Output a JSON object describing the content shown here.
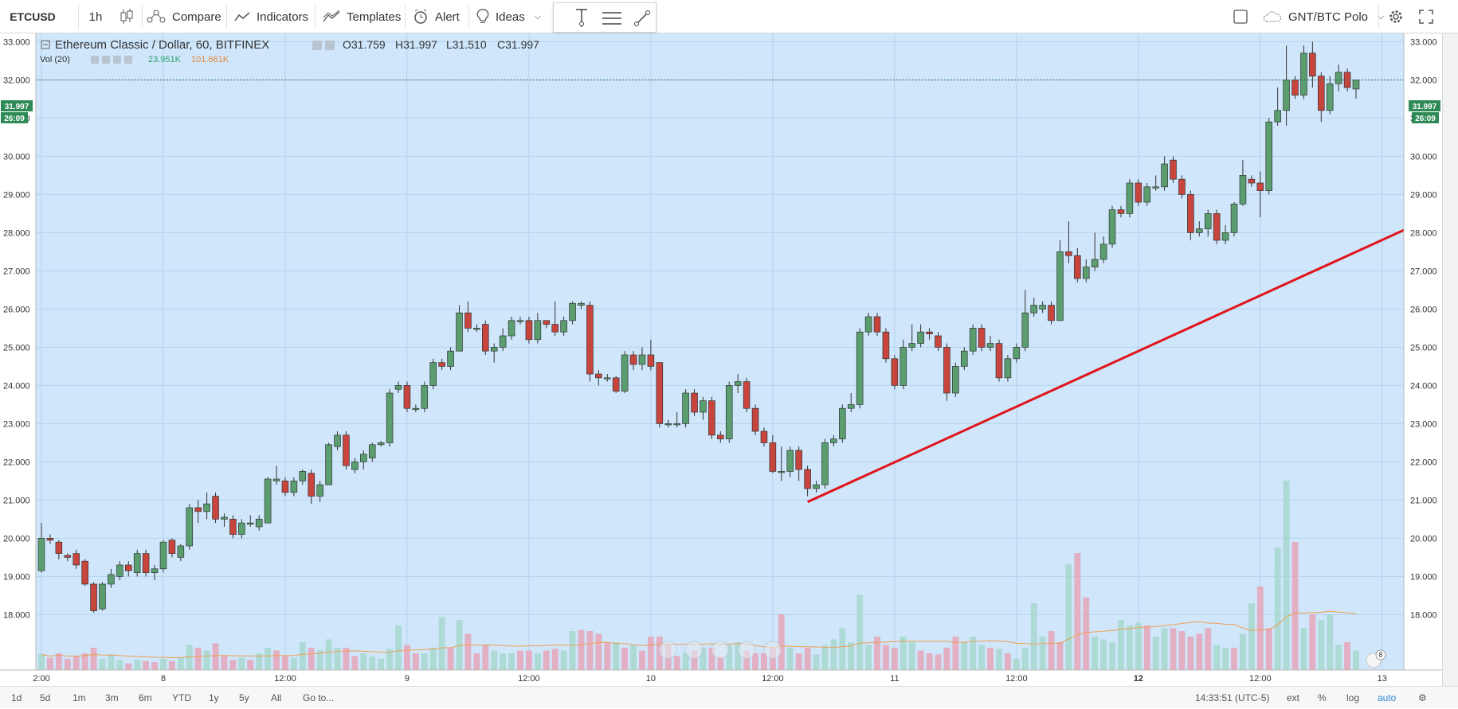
{
  "toolbar": {
    "symbol": "ETCUSD",
    "interval": "1h",
    "compare": "Compare",
    "indicators": "Indicators",
    "templates": "Templates",
    "alert": "Alert",
    "ideas": "Ideas",
    "pair": "GNT/BTC Polo"
  },
  "legend": {
    "title": "Ethereum Classic / Dollar, 60, BITFINEX",
    "open": "O31.759",
    "high": "H31.997",
    "low": "L31.510",
    "close": "C31.997",
    "vol_label": "Vol (20)",
    "vol_value": "23.951K",
    "vol_ma": "101.661K"
  },
  "price_badges": {
    "price": "31.997",
    "countdown": "26:09"
  },
  "bottombar": {
    "ranges": [
      "1d",
      "5d",
      "1m",
      "3m",
      "6m",
      "YTD",
      "1y",
      "5y",
      "All"
    ],
    "goto": "Go to...",
    "time": "14:33:51 (UTC-5)",
    "ext": "ext",
    "percent": "%",
    "log": "log",
    "auto": "auto"
  },
  "notification_count": "8",
  "colors": {
    "background": "#cfe6fb",
    "up": "#5a9e6f",
    "down": "#c8453e",
    "trendline": "#e0141b",
    "vol_up": "#a8d8d0",
    "vol_down": "#e4a8bd",
    "vol_ma": "#f0a050",
    "grid": "#b4d3ef"
  },
  "chart_data": {
    "type": "candlestick",
    "y_range": [
      17.3,
      33.8
    ],
    "y_ticks": [
      "33.000",
      "32.000",
      "31.000",
      "30.000",
      "29.000",
      "28.000",
      "27.000",
      "26.000",
      "25.000",
      "24.000",
      "23.000",
      "22.000",
      "21.000",
      "20.000",
      "19.000",
      "18.000"
    ],
    "x_labels": [
      {
        "label": "2:00",
        "index": 0
      },
      {
        "label": "8",
        "index": 14
      },
      {
        "label": "12:00",
        "index": 28
      },
      {
        "label": "9",
        "index": 42
      },
      {
        "label": "12:00",
        "index": 56
      },
      {
        "label": "10",
        "index": 70
      },
      {
        "label": "12:00",
        "index": 84
      },
      {
        "label": "11",
        "index": 98
      },
      {
        "label": "12:00",
        "index": 112
      },
      {
        "label": "12",
        "index": 126
      },
      {
        "label": "12:00",
        "index": 140
      },
      {
        "label": "13",
        "index": 154
      },
      {
        "label": "12:00",
        "index": 168
      }
    ],
    "candles": [
      [
        19.15,
        20.0,
        20.4,
        19.1
      ],
      [
        20.0,
        19.95,
        20.1,
        19.85
      ],
      [
        19.9,
        19.6,
        19.95,
        19.45
      ],
      [
        19.55,
        19.5,
        19.6,
        19.4
      ],
      [
        19.6,
        19.3,
        19.7,
        19.2
      ],
      [
        19.4,
        18.8,
        19.45,
        18.75
      ],
      [
        18.8,
        18.1,
        18.85,
        18.05
      ],
      [
        18.15,
        18.8,
        18.85,
        18.1
      ],
      [
        18.8,
        19.05,
        19.2,
        18.7
      ],
      [
        19.0,
        19.3,
        19.4,
        18.9
      ],
      [
        19.3,
        19.15,
        19.4,
        19.0
      ],
      [
        19.1,
        19.6,
        19.7,
        19.0
      ],
      [
        19.6,
        19.1,
        19.7,
        19.0
      ],
      [
        19.1,
        19.2,
        19.3,
        18.9
      ],
      [
        19.2,
        19.9,
        19.95,
        19.1
      ],
      [
        19.95,
        19.6,
        20.0,
        19.5
      ],
      [
        19.5,
        19.8,
        19.85,
        19.4
      ],
      [
        19.8,
        20.8,
        20.9,
        19.7
      ],
      [
        20.8,
        20.7,
        21.0,
        20.4
      ],
      [
        20.7,
        20.9,
        21.2,
        20.5
      ],
      [
        21.1,
        20.5,
        21.2,
        20.4
      ],
      [
        20.5,
        20.55,
        20.65,
        20.3
      ],
      [
        20.5,
        20.1,
        20.6,
        20.0
      ],
      [
        20.1,
        20.4,
        20.5,
        20.0
      ],
      [
        20.4,
        20.4,
        20.6,
        20.3
      ],
      [
        20.3,
        20.5,
        20.6,
        20.2
      ],
      [
        20.4,
        21.55,
        21.6,
        20.4
      ],
      [
        21.5,
        21.55,
        21.9,
        21.4
      ],
      [
        21.5,
        21.2,
        21.6,
        21.1
      ],
      [
        21.2,
        21.5,
        21.6,
        21.1
      ],
      [
        21.5,
        21.75,
        21.8,
        21.4
      ],
      [
        21.7,
        21.1,
        21.8,
        20.9
      ],
      [
        21.1,
        21.4,
        21.5,
        20.95
      ],
      [
        21.4,
        22.45,
        22.5,
        21.4
      ],
      [
        22.4,
        22.7,
        22.8,
        22.3
      ],
      [
        22.7,
        21.9,
        22.8,
        21.8
      ],
      [
        21.8,
        22.0,
        22.1,
        21.7
      ],
      [
        22.0,
        22.2,
        22.3,
        21.8
      ],
      [
        22.1,
        22.45,
        22.5,
        22.0
      ],
      [
        22.45,
        22.5,
        22.55,
        22.4
      ],
      [
        22.5,
        23.8,
        23.9,
        22.4
      ],
      [
        23.9,
        24.0,
        24.1,
        23.8
      ],
      [
        24.0,
        23.4,
        24.1,
        23.3
      ],
      [
        23.4,
        23.4,
        23.5,
        23.3
      ],
      [
        23.4,
        24.0,
        24.1,
        23.3
      ],
      [
        24.0,
        24.6,
        24.7,
        23.9
      ],
      [
        24.6,
        24.5,
        24.7,
        24.4
      ],
      [
        24.5,
        24.9,
        25.0,
        24.4
      ],
      [
        24.9,
        25.9,
        26.1,
        24.9
      ],
      [
        25.9,
        25.5,
        26.2,
        25.4
      ],
      [
        25.5,
        25.5,
        25.6,
        25.4
      ],
      [
        25.6,
        24.9,
        25.7,
        24.8
      ],
      [
        24.9,
        25.0,
        25.1,
        24.6
      ],
      [
        25.0,
        25.3,
        25.5,
        24.9
      ],
      [
        25.3,
        25.7,
        25.8,
        25.2
      ],
      [
        25.7,
        25.7,
        25.8,
        25.6
      ],
      [
        25.7,
        25.2,
        25.8,
        25.1
      ],
      [
        25.2,
        25.7,
        25.9,
        25.1
      ],
      [
        25.7,
        25.6,
        25.7,
        25.5
      ],
      [
        25.6,
        25.4,
        26.2,
        25.3
      ],
      [
        25.4,
        25.7,
        25.8,
        25.3
      ],
      [
        25.7,
        26.15,
        26.2,
        25.6
      ],
      [
        26.1,
        26.15,
        26.2,
        26.0
      ],
      [
        26.1,
        24.3,
        26.2,
        24.1
      ],
      [
        24.3,
        24.2,
        24.4,
        24.0
      ],
      [
        24.2,
        24.2,
        24.3,
        24.1
      ],
      [
        24.2,
        23.85,
        24.25,
        23.8
      ],
      [
        23.85,
        24.8,
        24.9,
        23.8
      ],
      [
        24.8,
        24.55,
        24.9,
        24.4
      ],
      [
        24.55,
        24.8,
        25.0,
        24.4
      ],
      [
        24.8,
        24.5,
        25.2,
        24.4
      ],
      [
        24.6,
        23.0,
        24.6,
        22.9
      ],
      [
        23.0,
        23.0,
        23.1,
        22.9
      ],
      [
        23.0,
        23.0,
        23.3,
        22.9
      ],
      [
        23.0,
        23.8,
        23.9,
        22.9
      ],
      [
        23.8,
        23.3,
        23.9,
        23.2
      ],
      [
        23.3,
        23.6,
        23.7,
        23.1
      ],
      [
        23.6,
        22.7,
        23.7,
        22.6
      ],
      [
        22.7,
        22.6,
        22.8,
        22.5
      ],
      [
        22.6,
        24.0,
        24.1,
        22.5
      ],
      [
        24.0,
        24.1,
        24.3,
        23.8
      ],
      [
        24.1,
        23.4,
        24.2,
        23.3
      ],
      [
        23.4,
        22.8,
        23.5,
        22.7
      ],
      [
        22.8,
        22.5,
        22.9,
        22.4
      ],
      [
        22.5,
        21.75,
        22.7,
        21.7
      ],
      [
        21.75,
        21.75,
        22.4,
        21.5
      ],
      [
        21.75,
        22.3,
        22.4,
        21.6
      ],
      [
        22.3,
        21.8,
        22.4,
        21.5
      ],
      [
        21.8,
        21.3,
        21.9,
        21.1
      ],
      [
        21.3,
        21.4,
        21.5,
        21.2
      ],
      [
        21.4,
        22.5,
        22.6,
        21.3
      ],
      [
        22.5,
        22.6,
        22.7,
        22.4
      ],
      [
        22.6,
        23.4,
        23.5,
        22.5
      ],
      [
        23.4,
        23.5,
        23.8,
        23.3
      ],
      [
        23.5,
        25.4,
        25.5,
        23.4
      ],
      [
        25.4,
        25.8,
        25.9,
        25.3
      ],
      [
        25.8,
        25.4,
        25.9,
        25.3
      ],
      [
        25.4,
        24.7,
        25.5,
        24.6
      ],
      [
        24.7,
        24.0,
        24.8,
        23.9
      ],
      [
        24.0,
        25.0,
        25.2,
        23.9
      ],
      [
        25.0,
        25.1,
        25.6,
        24.9
      ],
      [
        25.1,
        25.4,
        25.6,
        25.0
      ],
      [
        25.4,
        25.35,
        25.5,
        25.2
      ],
      [
        25.3,
        25.0,
        25.4,
        24.9
      ],
      [
        25.0,
        23.8,
        25.1,
        23.6
      ],
      [
        23.8,
        24.5,
        24.6,
        23.7
      ],
      [
        24.5,
        24.9,
        25.0,
        24.4
      ],
      [
        24.9,
        25.5,
        25.6,
        24.8
      ],
      [
        25.5,
        25.0,
        25.6,
        24.9
      ],
      [
        25.0,
        25.1,
        25.3,
        24.9
      ],
      [
        25.1,
        24.2,
        25.2,
        24.1
      ],
      [
        24.2,
        24.7,
        24.8,
        24.1
      ],
      [
        24.7,
        25.0,
        25.1,
        24.6
      ],
      [
        25.0,
        25.9,
        26.5,
        24.9
      ],
      [
        25.9,
        26.1,
        26.3,
        25.8
      ],
      [
        26.0,
        26.1,
        26.2,
        25.9
      ],
      [
        26.1,
        25.7,
        26.2,
        25.6
      ],
      [
        25.7,
        27.5,
        27.8,
        25.7
      ],
      [
        27.5,
        27.4,
        28.3,
        27.2
      ],
      [
        27.4,
        26.8,
        27.6,
        26.7
      ],
      [
        26.8,
        27.1,
        27.3,
        26.7
      ],
      [
        27.1,
        27.3,
        28.0,
        27.0
      ],
      [
        27.3,
        27.7,
        27.9,
        27.2
      ],
      [
        27.7,
        28.6,
        28.7,
        27.6
      ],
      [
        28.6,
        28.5,
        28.7,
        28.4
      ],
      [
        28.5,
        29.3,
        29.4,
        28.4
      ],
      [
        29.3,
        28.8,
        29.4,
        28.7
      ],
      [
        28.8,
        29.2,
        29.3,
        28.7
      ],
      [
        29.2,
        29.2,
        29.5,
        29.1
      ],
      [
        29.2,
        29.8,
        30.0,
        29.1
      ],
      [
        29.9,
        29.4,
        30.0,
        29.3
      ],
      [
        29.4,
        29.0,
        29.5,
        28.9
      ],
      [
        29.0,
        28.0,
        29.1,
        27.8
      ],
      [
        28.0,
        28.1,
        28.3,
        27.9
      ],
      [
        28.1,
        28.5,
        28.6,
        27.9
      ],
      [
        28.5,
        27.8,
        28.6,
        27.7
      ],
      [
        27.8,
        28.0,
        28.2,
        27.7
      ],
      [
        28.0,
        28.75,
        28.8,
        27.9
      ],
      [
        28.75,
        29.5,
        29.9,
        28.7
      ],
      [
        29.4,
        29.3,
        29.5,
        29.2
      ],
      [
        29.3,
        29.1,
        29.6,
        28.4
      ],
      [
        29.1,
        30.9,
        31.0,
        29.0
      ],
      [
        30.9,
        31.2,
        31.8,
        30.8
      ],
      [
        31.2,
        32.0,
        32.9,
        30.8
      ],
      [
        32.0,
        31.6,
        32.1,
        31.5
      ],
      [
        31.6,
        32.7,
        32.9,
        31.5
      ],
      [
        32.7,
        32.1,
        33.0,
        31.8
      ],
      [
        32.1,
        31.2,
        32.2,
        30.9
      ],
      [
        31.2,
        31.9,
        32.1,
        31.1
      ],
      [
        31.9,
        32.2,
        32.4,
        31.7
      ],
      [
        32.2,
        31.8,
        32.3,
        31.7
      ],
      [
        31.76,
        32.0,
        32.0,
        31.51
      ]
    ],
    "volumes": [
      [
        0.28,
        1
      ],
      [
        0.22,
        0
      ],
      [
        0.3,
        0
      ],
      [
        0.2,
        0
      ],
      [
        0.25,
        0
      ],
      [
        0.3,
        0
      ],
      [
        0.4,
        0
      ],
      [
        0.2,
        1
      ],
      [
        0.28,
        1
      ],
      [
        0.18,
        1
      ],
      [
        0.12,
        0
      ],
      [
        0.18,
        1
      ],
      [
        0.16,
        0
      ],
      [
        0.14,
        0
      ],
      [
        0.2,
        1
      ],
      [
        0.16,
        0
      ],
      [
        0.22,
        1
      ],
      [
        0.45,
        1
      ],
      [
        0.4,
        0
      ],
      [
        0.35,
        1
      ],
      [
        0.48,
        0
      ],
      [
        0.25,
        0
      ],
      [
        0.18,
        0
      ],
      [
        0.22,
        1
      ],
      [
        0.18,
        0
      ],
      [
        0.3,
        1
      ],
      [
        0.4,
        1
      ],
      [
        0.35,
        0
      ],
      [
        0.25,
        0
      ],
      [
        0.22,
        1
      ],
      [
        0.5,
        1
      ],
      [
        0.4,
        0
      ],
      [
        0.36,
        1
      ],
      [
        0.55,
        1
      ],
      [
        0.4,
        1
      ],
      [
        0.4,
        0
      ],
      [
        0.25,
        0
      ],
      [
        0.3,
        1
      ],
      [
        0.24,
        1
      ],
      [
        0.2,
        1
      ],
      [
        0.38,
        1
      ],
      [
        0.8,
        1
      ],
      [
        0.45,
        0
      ],
      [
        0.3,
        0
      ],
      [
        0.3,
        1
      ],
      [
        0.4,
        1
      ],
      [
        0.95,
        1
      ],
      [
        0.4,
        0
      ],
      [
        0.9,
        1
      ],
      [
        0.65,
        0
      ],
      [
        0.3,
        0
      ],
      [
        0.45,
        0
      ],
      [
        0.35,
        1
      ],
      [
        0.3,
        1
      ],
      [
        0.3,
        1
      ],
      [
        0.35,
        0
      ],
      [
        0.35,
        0
      ],
      [
        0.3,
        1
      ],
      [
        0.35,
        0
      ],
      [
        0.38,
        0
      ],
      [
        0.35,
        1
      ],
      [
        0.7,
        1
      ],
      [
        0.72,
        0
      ],
      [
        0.7,
        0
      ],
      [
        0.65,
        0
      ],
      [
        0.5,
        0
      ],
      [
        0.5,
        1
      ],
      [
        0.4,
        0
      ],
      [
        0.45,
        1
      ],
      [
        0.35,
        0
      ],
      [
        0.6,
        0
      ],
      [
        0.6,
        0
      ],
      [
        0.45,
        0
      ],
      [
        0.25,
        0
      ],
      [
        0.3,
        1
      ],
      [
        0.35,
        0
      ],
      [
        0.4,
        1
      ],
      [
        0.4,
        0
      ],
      [
        0.25,
        0
      ],
      [
        0.45,
        1
      ],
      [
        0.5,
        1
      ],
      [
        0.35,
        0
      ],
      [
        0.3,
        0
      ],
      [
        0.3,
        0
      ],
      [
        0.4,
        0
      ],
      [
        1.0,
        0
      ],
      [
        0.4,
        1
      ],
      [
        0.3,
        0
      ],
      [
        0.4,
        0
      ],
      [
        0.28,
        1
      ],
      [
        0.45,
        1
      ],
      [
        0.55,
        1
      ],
      [
        0.75,
        1
      ],
      [
        0.5,
        1
      ],
      [
        1.35,
        1
      ],
      [
        0.45,
        1
      ],
      [
        0.6,
        0
      ],
      [
        0.45,
        0
      ],
      [
        0.4,
        0
      ],
      [
        0.6,
        1
      ],
      [
        0.5,
        1
      ],
      [
        0.35,
        0
      ],
      [
        0.3,
        0
      ],
      [
        0.28,
        0
      ],
      [
        0.4,
        0
      ],
      [
        0.6,
        0
      ],
      [
        0.5,
        1
      ],
      [
        0.6,
        1
      ],
      [
        0.45,
        1
      ],
      [
        0.4,
        0
      ],
      [
        0.38,
        1
      ],
      [
        0.3,
        0
      ],
      [
        0.2,
        1
      ],
      [
        0.4,
        1
      ],
      [
        1.2,
        1
      ],
      [
        0.6,
        1
      ],
      [
        0.7,
        0
      ],
      [
        0.5,
        0
      ],
      [
        1.9,
        1
      ],
      [
        2.1,
        0
      ],
      [
        1.3,
        0
      ],
      [
        0.6,
        1
      ],
      [
        0.55,
        1
      ],
      [
        0.5,
        1
      ],
      [
        0.9,
        1
      ],
      [
        0.8,
        1
      ],
      [
        0.85,
        1
      ],
      [
        0.8,
        0
      ],
      [
        0.6,
        1
      ],
      [
        0.75,
        1
      ],
      [
        0.75,
        0
      ],
      [
        0.7,
        0
      ],
      [
        0.6,
        0
      ],
      [
        0.65,
        0
      ],
      [
        0.75,
        0
      ],
      [
        0.45,
        1
      ],
      [
        0.4,
        1
      ],
      [
        0.4,
        0
      ],
      [
        0.65,
        1
      ],
      [
        1.2,
        1
      ],
      [
        1.5,
        0
      ],
      [
        0.75,
        0
      ],
      [
        2.2,
        1
      ],
      [
        3.4,
        1
      ],
      [
        2.3,
        0
      ],
      [
        0.75,
        1
      ],
      [
        1.0,
        0
      ],
      [
        0.9,
        1
      ],
      [
        1.0,
        1
      ],
      [
        0.45,
        1
      ],
      [
        0.5,
        0
      ],
      [
        0.35,
        1
      ]
    ],
    "trendline": {
      "from": {
        "index": 88,
        "value": 20.95
      },
      "to": {
        "index": 177,
        "value": 30.2
      }
    }
  }
}
